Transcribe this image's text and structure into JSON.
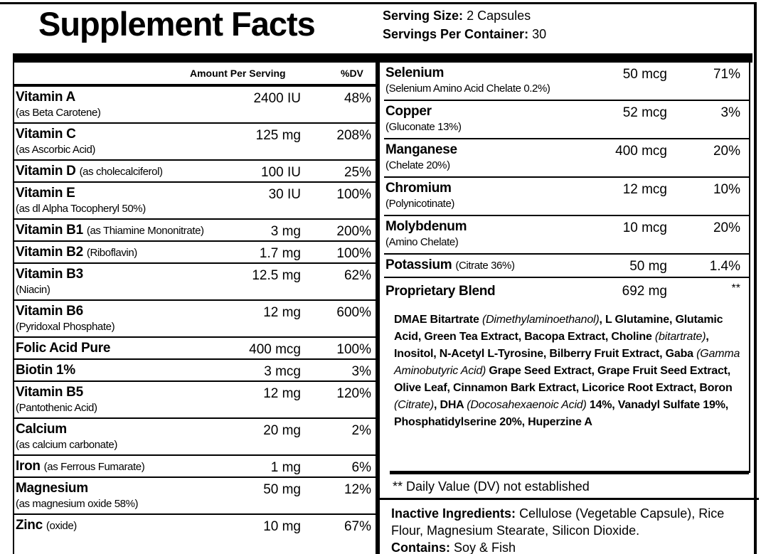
{
  "title": "Supplement Facts",
  "serving_size": {
    "label": "Serving Size:",
    "value": "2 Capsules"
  },
  "servings_per_container": {
    "label": "Servings Per Container:",
    "value": "30"
  },
  "header": {
    "amount": "Amount Per Serving",
    "dv": "%DV"
  },
  "left_rows": [
    {
      "name": "Vitamin A",
      "note": "(as Beta Carotene)",
      "amount": "2400 IU",
      "dv": "48%"
    },
    {
      "name": "Vitamin C",
      "note": "(as Ascorbic Acid)",
      "amount": "125 mg",
      "dv": "208%"
    },
    {
      "name": "Vitamin D",
      "note": "(as cholecalciferol)",
      "amount": "100 IU",
      "dv": "25%"
    },
    {
      "name": "Vitamin E",
      "note": "(as dl Alpha Tocopheryl 50%)",
      "amount": "30 IU",
      "dv": "100%"
    },
    {
      "name": "Vitamin B1",
      "note": "(as Thiamine Mononitrate)",
      "amount": "3 mg",
      "dv": "200%"
    },
    {
      "name": "Vitamin B2",
      "note": "(Riboflavin)",
      "amount": "1.7 mg",
      "dv": "100%"
    },
    {
      "name": "Vitamin B3",
      "note": "(Niacin)",
      "amount": "12.5 mg",
      "dv": "62%"
    },
    {
      "name": "Vitamin B6",
      "note": "(Pyridoxal Phosphate)",
      "amount": "12 mg",
      "dv": "600%"
    },
    {
      "name": "Folic Acid Pure",
      "amount": "400 mcg",
      "dv": "100%"
    },
    {
      "name": "Biotin 1%",
      "amount": "3 mcg",
      "dv": "3%"
    },
    {
      "name": "Vitamin B5",
      "note": "(Pantothenic Acid)",
      "amount": "12 mg",
      "dv": "120%"
    },
    {
      "name": "Calcium",
      "note": "(as calcium carbonate)",
      "amount": "20 mg",
      "dv": "2%"
    },
    {
      "name": "Iron",
      "note": "(as Ferrous Fumarate)",
      "amount": "1 mg",
      "dv": "6%"
    },
    {
      "name": "Magnesium",
      "note": "(as magnesium oxide 58%)",
      "amount": "50 mg",
      "dv": "12%"
    },
    {
      "name": "Zinc",
      "note": "(oxide)",
      "amount": "10 mg",
      "dv": "67%"
    }
  ],
  "right_rows": [
    {
      "name": "Selenium",
      "note": "(Selenium Amino Acid Chelate 0.2%)",
      "amount": "50 mcg",
      "dv": "71%"
    },
    {
      "name": "Copper",
      "note": "(Gluconate 13%)",
      "amount": "52 mcg",
      "dv": "3%"
    },
    {
      "name": "Manganese",
      "note": "(Chelate 20%)",
      "amount": "400 mcg",
      "dv": "20%"
    },
    {
      "name": "Chromium",
      "note": "(Polynicotinate)",
      "amount": "12 mcg",
      "dv": "10%"
    },
    {
      "name": "Molybdenum",
      "note": "(Amino Chelate)",
      "amount": "10 mcg",
      "dv": "20%"
    },
    {
      "name": "Potassium",
      "note": "(Citrate 36%)",
      "amount": "50 mg",
      "dv": "1.4%"
    }
  ],
  "blend": {
    "name": "Proprietary Blend",
    "amount": "692 mg",
    "dv": "**",
    "parts": [
      {
        "text": "DMAE Bitartrate "
      },
      {
        "text": "(Dimethylaminoethanol)",
        "italic": true
      },
      {
        "text": ", L Glutamine, Glutamic Acid, Green Tea Extract, Bacopa Extract, Choline "
      },
      {
        "text": "(bitartrate)",
        "italic": true
      },
      {
        "text": ", Inositol, N-Acetyl L-Tyrosine, Bilberry Fruit Extract, Gaba "
      },
      {
        "text": "(Gamma Aminobutyric Acid)",
        "italic": true
      },
      {
        "text": " Grape Seed Extract, Grape Fruit Seed Extract, Olive Leaf, Cinnamon Bark Extract, Licorice Root Extract, Boron "
      },
      {
        "text": "(Citrate)",
        "italic": true
      },
      {
        "text": ", DHA "
      },
      {
        "text": "(Docosahexaenoic Acid)",
        "italic": true
      },
      {
        "text": " 14%, Vanadyl Sulfate 19%, Phosphatidylserine 20%, Huperzine A"
      }
    ]
  },
  "footnote": "** Daily Value (DV) not established",
  "inactive": {
    "label": "Inactive Ingredients:",
    "text": "Cellulose (Vegetable Capsule), Rice Flour, Magnesium Stearate, Silicon Dioxide."
  },
  "contains": {
    "label": "Contains:",
    "text": "Soy & Fish"
  }
}
